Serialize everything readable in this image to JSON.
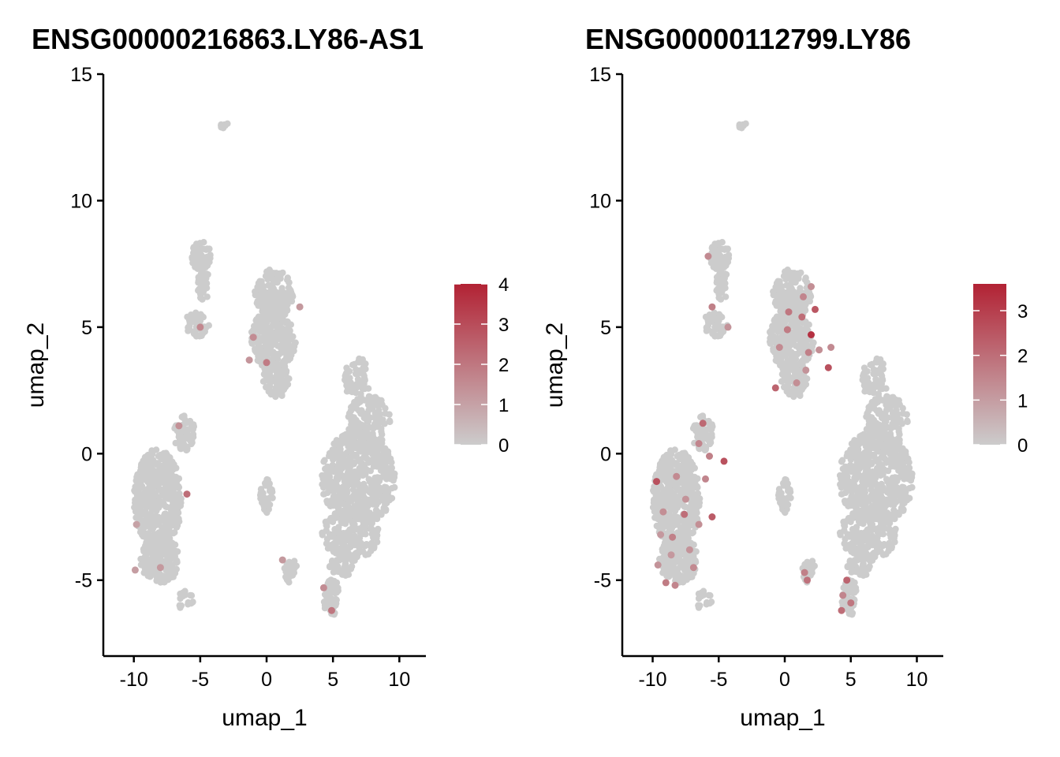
{
  "chart_data": [
    {
      "type": "scatter",
      "title": "ENSG00000216863.LY86-AS1",
      "xlabel": "umap_1",
      "ylabel": "umap_2",
      "xlim": [
        -12.3,
        12
      ],
      "ylim": [
        -8,
        15
      ],
      "xticks": [
        -10,
        -5,
        0,
        5,
        10
      ],
      "xtick_labels": [
        "-10",
        "-5",
        "0",
        "5",
        "10"
      ],
      "yticks": [
        -5,
        0,
        5,
        10,
        15
      ],
      "ytick_labels": [
        "-5",
        "0",
        "5",
        "10",
        "15"
      ],
      "colorbar": {
        "min": 0,
        "max": 4,
        "ticks": [
          0,
          1,
          2,
          3,
          4
        ],
        "tick_labels": [
          "0",
          "1",
          "2",
          "3",
          "4"
        ],
        "low_color": "#cccccc",
        "high_color": "#b22234"
      },
      "base_color": "#cccccc",
      "clusters": [
        {
          "name": "top-islet",
          "cx": -3.2,
          "cy": 13.0,
          "rx": 0.3,
          "ry": 0.2,
          "n": 8
        },
        {
          "name": "upper-left-a",
          "cx": -4.9,
          "cy": 7.8,
          "rx": 0.75,
          "ry": 0.6,
          "n": 60
        },
        {
          "name": "upper-left-b",
          "cx": -4.8,
          "cy": 6.7,
          "rx": 0.5,
          "ry": 0.7,
          "n": 35
        },
        {
          "name": "upper-left-c",
          "cx": -5.2,
          "cy": 5.1,
          "rx": 1.0,
          "ry": 0.5,
          "n": 45
        },
        {
          "name": "center-top",
          "cx": 0.6,
          "cy": 6.3,
          "rx": 1.5,
          "ry": 1.0,
          "n": 160
        },
        {
          "name": "center-mid",
          "cx": 0.5,
          "cy": 4.5,
          "rx": 1.7,
          "ry": 1.2,
          "n": 220
        },
        {
          "name": "center-low",
          "cx": 0.7,
          "cy": 3.0,
          "rx": 1.0,
          "ry": 0.8,
          "n": 90
        },
        {
          "name": "right-top",
          "cx": 6.8,
          "cy": 3.0,
          "rx": 1.1,
          "ry": 0.8,
          "n": 60
        },
        {
          "name": "right-upper",
          "cx": 7.7,
          "cy": 1.3,
          "rx": 1.6,
          "ry": 1.0,
          "n": 130
        },
        {
          "name": "right-main",
          "cx": 6.9,
          "cy": -1.0,
          "rx": 2.8,
          "ry": 1.9,
          "n": 520
        },
        {
          "name": "right-lower",
          "cx": 6.3,
          "cy": -3.2,
          "rx": 2.2,
          "ry": 1.0,
          "n": 170
        },
        {
          "name": "right-tail",
          "cx": 5.7,
          "cy": -4.3,
          "rx": 1.0,
          "ry": 0.6,
          "n": 50
        },
        {
          "name": "left-top",
          "cx": -6.2,
          "cy": 0.8,
          "rx": 0.8,
          "ry": 0.7,
          "n": 70
        },
        {
          "name": "left-main",
          "cx": -8.2,
          "cy": -1.8,
          "rx": 1.8,
          "ry": 2.0,
          "n": 480
        },
        {
          "name": "left-low",
          "cx": -8.0,
          "cy": -4.2,
          "rx": 1.5,
          "ry": 0.9,
          "n": 180
        },
        {
          "name": "left-tail",
          "cx": -6.1,
          "cy": -5.8,
          "rx": 0.6,
          "ry": 0.4,
          "n": 18
        },
        {
          "name": "small-center",
          "cx": 0.0,
          "cy": -1.7,
          "rx": 0.5,
          "ry": 0.7,
          "n": 40
        },
        {
          "name": "small-bottom",
          "cx": 1.8,
          "cy": -4.6,
          "rx": 0.5,
          "ry": 0.5,
          "n": 30
        },
        {
          "name": "bottom-right",
          "cx": 4.9,
          "cy": -5.7,
          "rx": 0.6,
          "ry": 0.8,
          "n": 60
        }
      ],
      "expressed_points": [
        {
          "x": -6.6,
          "y": 1.1,
          "value": 1.4
        },
        {
          "x": -5.0,
          "y": 5.0,
          "value": 1.6
        },
        {
          "x": -1.3,
          "y": 3.7,
          "value": 1.3
        },
        {
          "x": -1.0,
          "y": 4.6,
          "value": 1.5
        },
        {
          "x": 0.0,
          "y": 3.6,
          "value": 1.9
        },
        {
          "x": 2.5,
          "y": 5.8,
          "value": 1.2
        },
        {
          "x": -6.0,
          "y": -1.6,
          "value": 2.2
        },
        {
          "x": -9.8,
          "y": -2.8,
          "value": 1.0
        },
        {
          "x": -8.0,
          "y": -4.5,
          "value": 1.2
        },
        {
          "x": -9.9,
          "y": -4.6,
          "value": 1.1
        },
        {
          "x": 1.2,
          "y": -4.2,
          "value": 1.2
        },
        {
          "x": 4.3,
          "y": -5.3,
          "value": 1.5
        },
        {
          "x": 4.9,
          "y": -6.2,
          "value": 2.0
        }
      ]
    },
    {
      "type": "scatter",
      "title": "ENSG00000112799.LY86",
      "xlabel": "umap_1",
      "ylabel": "umap_2",
      "xlim": [
        -12.3,
        12
      ],
      "ylim": [
        -8,
        15
      ],
      "xticks": [
        -10,
        -5,
        0,
        5,
        10
      ],
      "xtick_labels": [
        "-10",
        "-5",
        "0",
        "5",
        "10"
      ],
      "yticks": [
        -5,
        0,
        5,
        10,
        15
      ],
      "ytick_labels": [
        "-5",
        "0",
        "5",
        "10",
        "15"
      ],
      "colorbar": {
        "min": 0,
        "max": 3.6,
        "ticks": [
          0,
          1,
          2,
          3
        ],
        "tick_labels": [
          "0",
          "1",
          "2",
          "3"
        ],
        "low_color": "#cccccc",
        "high_color": "#b22234"
      },
      "base_color": "#cccccc",
      "clusters": [
        {
          "name": "top-islet",
          "cx": -3.2,
          "cy": 13.0,
          "rx": 0.3,
          "ry": 0.2,
          "n": 8
        },
        {
          "name": "upper-left-a",
          "cx": -4.9,
          "cy": 7.8,
          "rx": 0.75,
          "ry": 0.6,
          "n": 60
        },
        {
          "name": "upper-left-b",
          "cx": -4.8,
          "cy": 6.7,
          "rx": 0.5,
          "ry": 0.7,
          "n": 35
        },
        {
          "name": "upper-left-c",
          "cx": -5.2,
          "cy": 5.1,
          "rx": 1.0,
          "ry": 0.5,
          "n": 45
        },
        {
          "name": "center-top",
          "cx": 0.6,
          "cy": 6.3,
          "rx": 1.5,
          "ry": 1.0,
          "n": 160
        },
        {
          "name": "center-mid",
          "cx": 0.5,
          "cy": 4.5,
          "rx": 1.7,
          "ry": 1.2,
          "n": 220
        },
        {
          "name": "center-low",
          "cx": 0.7,
          "cy": 3.0,
          "rx": 1.0,
          "ry": 0.8,
          "n": 90
        },
        {
          "name": "right-top",
          "cx": 6.8,
          "cy": 3.0,
          "rx": 1.1,
          "ry": 0.8,
          "n": 60
        },
        {
          "name": "right-upper",
          "cx": 7.7,
          "cy": 1.3,
          "rx": 1.6,
          "ry": 1.0,
          "n": 130
        },
        {
          "name": "right-main",
          "cx": 6.9,
          "cy": -1.0,
          "rx": 2.8,
          "ry": 1.9,
          "n": 520
        },
        {
          "name": "right-lower",
          "cx": 6.3,
          "cy": -3.2,
          "rx": 2.2,
          "ry": 1.0,
          "n": 170
        },
        {
          "name": "right-tail",
          "cx": 5.7,
          "cy": -4.3,
          "rx": 1.0,
          "ry": 0.6,
          "n": 50
        },
        {
          "name": "left-top",
          "cx": -6.2,
          "cy": 0.8,
          "rx": 0.8,
          "ry": 0.7,
          "n": 70
        },
        {
          "name": "left-main",
          "cx": -8.2,
          "cy": -1.8,
          "rx": 1.8,
          "ry": 2.0,
          "n": 480
        },
        {
          "name": "left-low",
          "cx": -8.0,
          "cy": -4.2,
          "rx": 1.5,
          "ry": 0.9,
          "n": 180
        },
        {
          "name": "left-tail",
          "cx": -6.1,
          "cy": -5.8,
          "rx": 0.6,
          "ry": 0.4,
          "n": 18
        },
        {
          "name": "small-center",
          "cx": 0.0,
          "cy": -1.7,
          "rx": 0.5,
          "ry": 0.7,
          "n": 40
        },
        {
          "name": "small-bottom",
          "cx": 1.8,
          "cy": -4.6,
          "rx": 0.5,
          "ry": 0.5,
          "n": 30
        },
        {
          "name": "bottom-right",
          "cx": 4.9,
          "cy": -5.7,
          "rx": 0.6,
          "ry": 0.8,
          "n": 60
        }
      ],
      "expressed_points": [
        {
          "x": -5.8,
          "y": 7.8,
          "value": 1.4
        },
        {
          "x": -5.5,
          "y": 5.8,
          "value": 1.6
        },
        {
          "x": -4.3,
          "y": 5.0,
          "value": 1.2
        },
        {
          "x": 1.4,
          "y": 6.2,
          "value": 1.5
        },
        {
          "x": 2.0,
          "y": 6.6,
          "value": 1.3
        },
        {
          "x": 0.3,
          "y": 5.6,
          "value": 1.8
        },
        {
          "x": 1.3,
          "y": 5.4,
          "value": 2.0
        },
        {
          "x": 2.3,
          "y": 5.7,
          "value": 2.5
        },
        {
          "x": 2.0,
          "y": 4.7,
          "value": 3.3
        },
        {
          "x": 0.2,
          "y": 4.9,
          "value": 1.7
        },
        {
          "x": -0.4,
          "y": 4.2,
          "value": 1.4
        },
        {
          "x": 1.8,
          "y": 4.0,
          "value": 1.6
        },
        {
          "x": 2.6,
          "y": 4.1,
          "value": 1.3
        },
        {
          "x": 3.3,
          "y": 3.4,
          "value": 2.6
        },
        {
          "x": 1.6,
          "y": 3.3,
          "value": 1.2
        },
        {
          "x": -0.7,
          "y": 2.6,
          "value": 2.2
        },
        {
          "x": 0.9,
          "y": 2.8,
          "value": 1.3
        },
        {
          "x": -6.2,
          "y": 1.2,
          "value": 2.1
        },
        {
          "x": -6.5,
          "y": 0.4,
          "value": 1.5
        },
        {
          "x": -4.6,
          "y": -0.3,
          "value": 2.6
        },
        {
          "x": -5.7,
          "y": -0.1,
          "value": 1.6
        },
        {
          "x": -9.7,
          "y": -1.1,
          "value": 2.6
        },
        {
          "x": -8.2,
          "y": -0.9,
          "value": 1.4
        },
        {
          "x": -7.5,
          "y": -1.8,
          "value": 1.2
        },
        {
          "x": -9.2,
          "y": -2.3,
          "value": 1.3
        },
        {
          "x": -6.0,
          "y": -1.0,
          "value": 1.5
        },
        {
          "x": -7.6,
          "y": -2.4,
          "value": 2.0
        },
        {
          "x": -5.5,
          "y": -2.5,
          "value": 2.4
        },
        {
          "x": -9.4,
          "y": -3.2,
          "value": 1.1
        },
        {
          "x": -8.5,
          "y": -3.3,
          "value": 1.6
        },
        {
          "x": -6.5,
          "y": -2.8,
          "value": 1.3
        },
        {
          "x": -7.2,
          "y": -3.8,
          "value": 1.2
        },
        {
          "x": -8.6,
          "y": -4.0,
          "value": 1.1
        },
        {
          "x": -6.9,
          "y": -4.5,
          "value": 1.4
        },
        {
          "x": -9.6,
          "y": -4.4,
          "value": 1.2
        },
        {
          "x": -8.3,
          "y": -5.2,
          "value": 1.5
        },
        {
          "x": -9.0,
          "y": -5.1,
          "value": 1.7
        },
        {
          "x": 1.5,
          "y": -4.7,
          "value": 1.6
        },
        {
          "x": 1.7,
          "y": -5.0,
          "value": 1.9
        },
        {
          "x": 4.7,
          "y": -5.0,
          "value": 2.2
        },
        {
          "x": 4.4,
          "y": -5.6,
          "value": 1.5
        },
        {
          "x": 5.0,
          "y": -5.9,
          "value": 1.8
        },
        {
          "x": 4.3,
          "y": -6.2,
          "value": 2.0
        },
        {
          "x": 3.5,
          "y": 4.2,
          "value": 1.4
        }
      ]
    }
  ]
}
